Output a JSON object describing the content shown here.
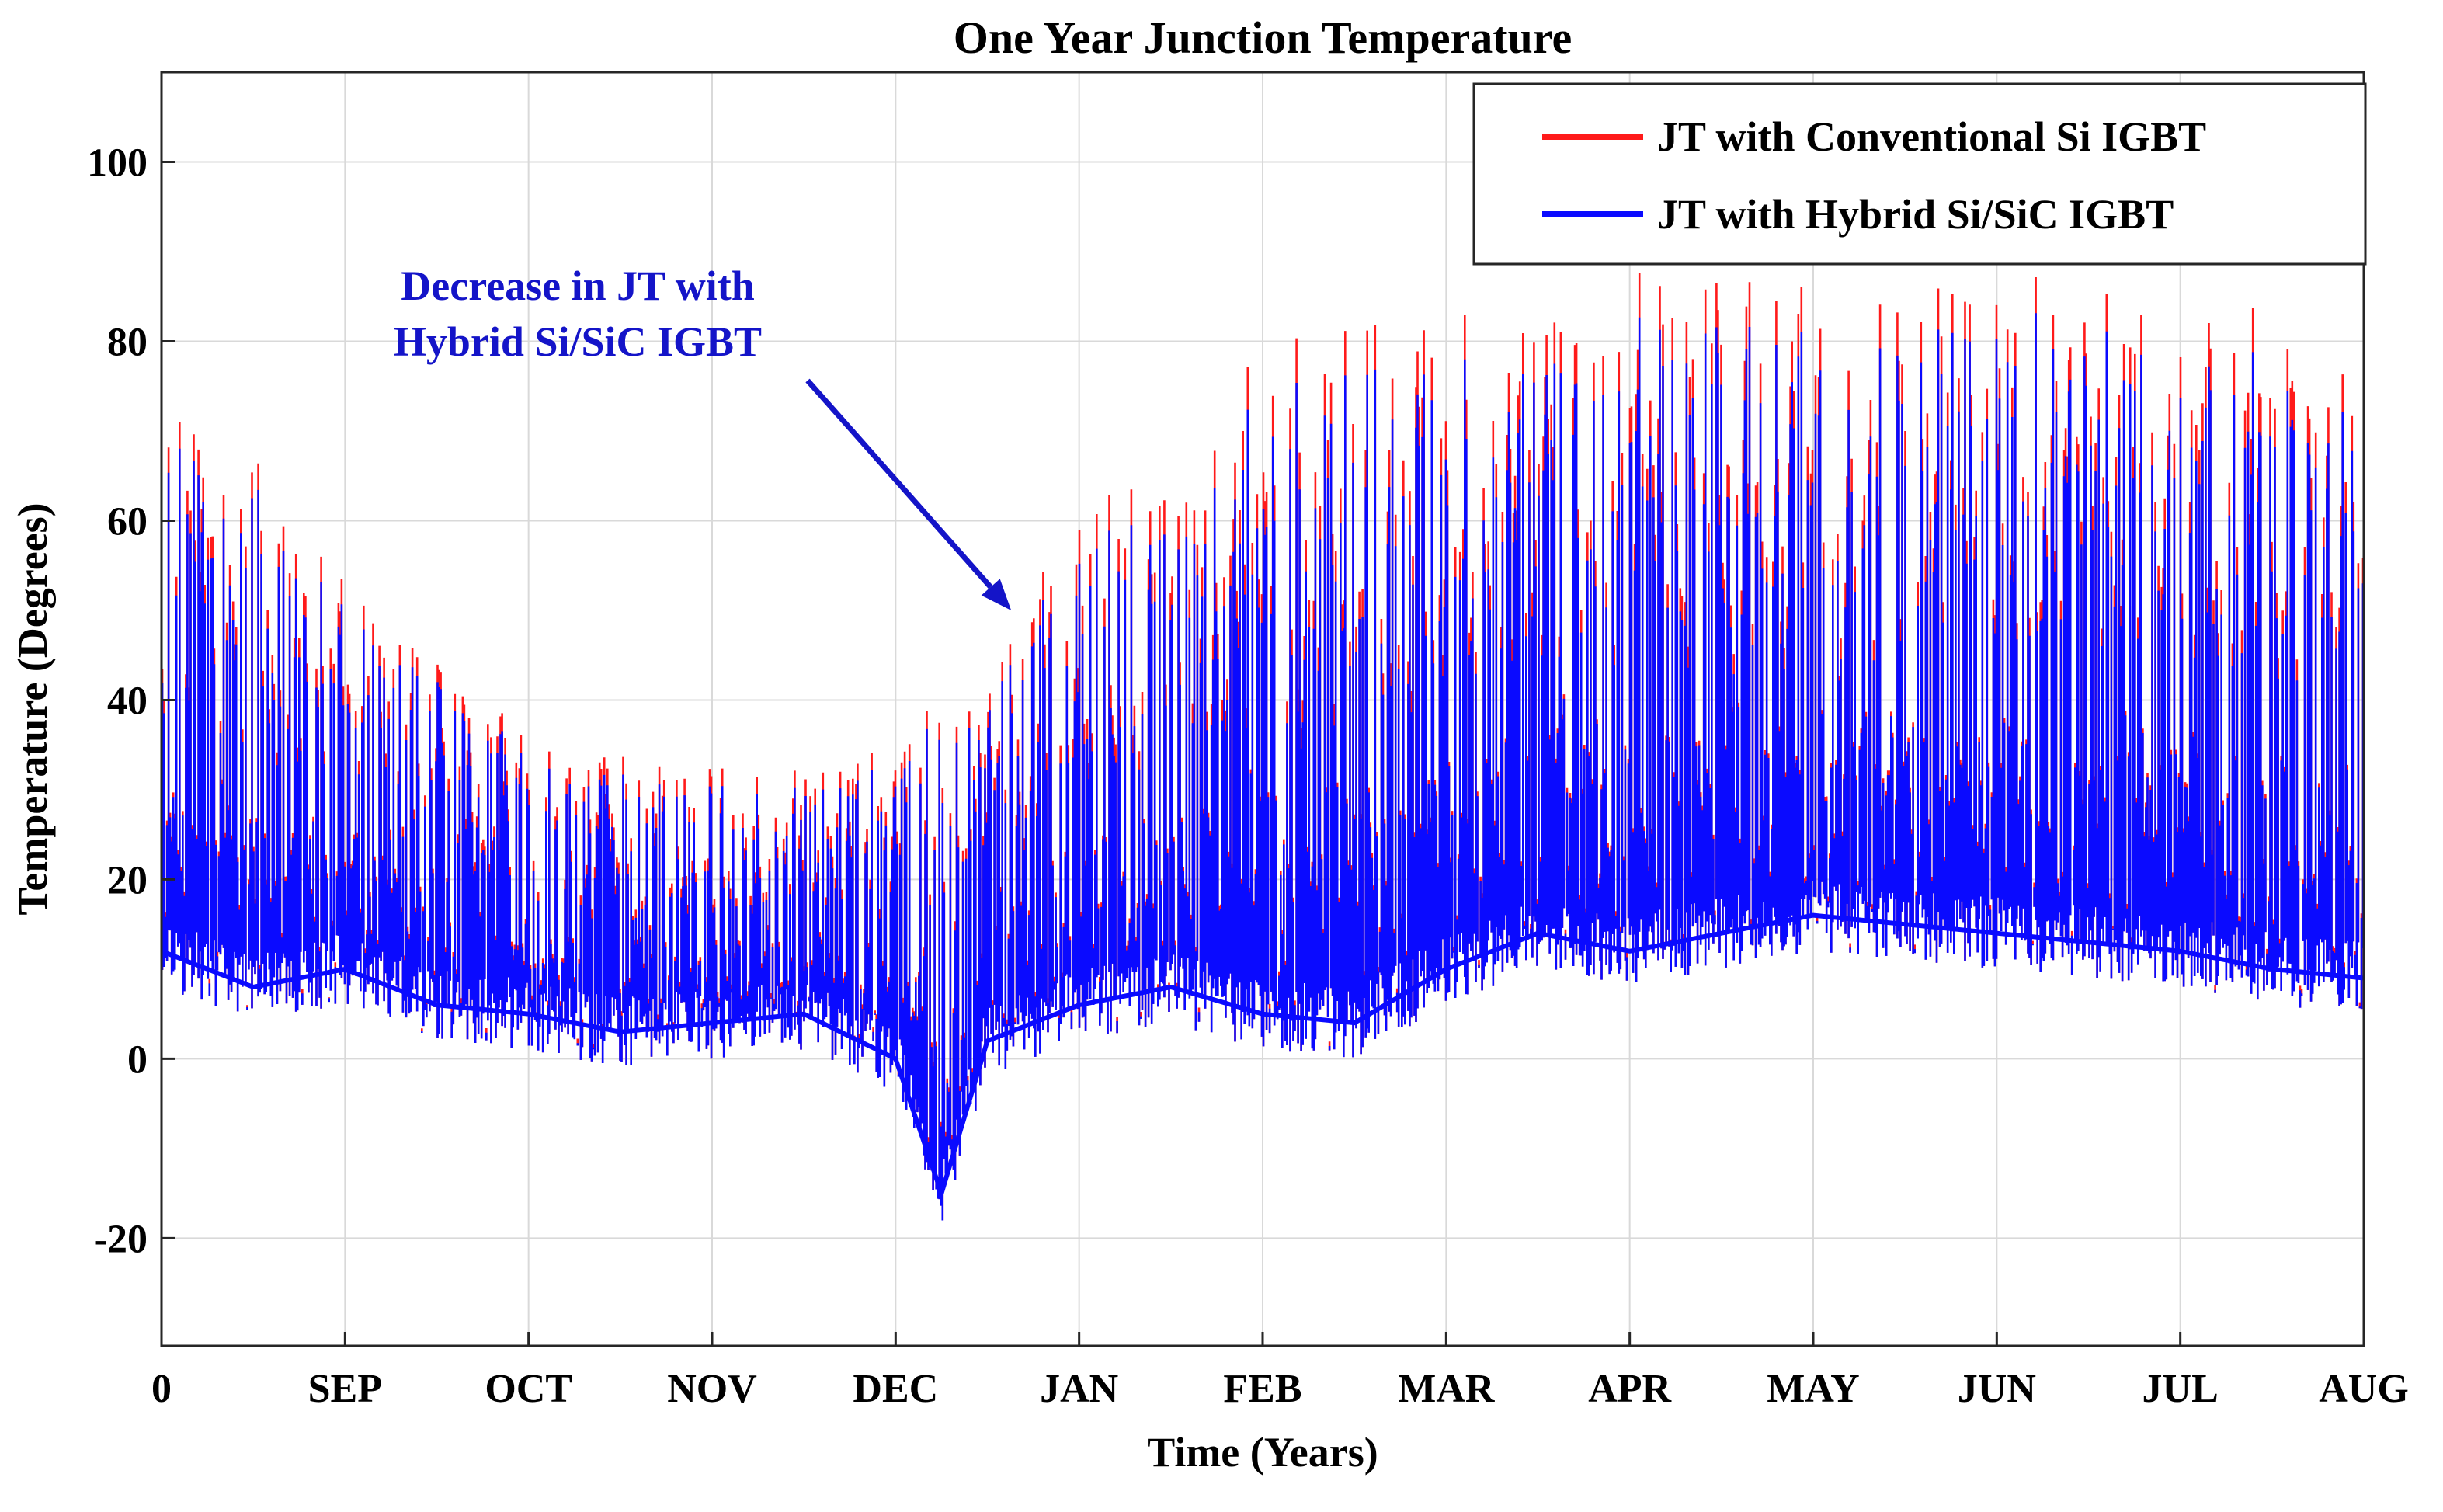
{
  "chart_data": {
    "type": "line",
    "title": "One Year Junction Temperature",
    "xlabel": "Time (Years)",
    "ylabel": "Temperature (Degrees)",
    "xlim": [
      0,
      12
    ],
    "ylim": [
      -32,
      110
    ],
    "yticks": [
      -20,
      0,
      20,
      40,
      60,
      80,
      100
    ],
    "x_tick_positions": [
      0,
      1,
      2,
      3,
      4,
      5,
      6,
      7,
      8,
      9,
      10,
      11,
      12
    ],
    "x_tick_labels": [
      "0",
      "SEP",
      "OCT",
      "NOV",
      "DEC",
      "JAN",
      "FEB",
      "MAR",
      "APR",
      "MAY",
      "JUN",
      "JUL",
      "AUG"
    ],
    "grid": true,
    "legend_position": "top-right",
    "series": [
      {
        "name": "JT with Conventional Si IGBT",
        "color": "#ff1a1a",
        "peak_envelope_x": [
          0,
          0.5,
          1,
          1.5,
          2,
          2.5,
          3,
          3.5,
          4,
          4.5,
          5,
          5.5,
          6,
          6.5,
          7,
          7.5,
          8,
          8.5,
          9,
          9.5,
          10,
          10.5,
          11,
          11.5,
          12
        ],
        "peak_envelope_y": [
          72,
          68,
          55,
          45,
          36,
          34,
          33,
          33,
          36,
          45,
          62,
          65,
          80,
          82,
          82,
          88,
          88,
          87,
          86,
          86,
          88,
          86,
          85,
          84,
          74
        ]
      },
      {
        "name": "JT with Hybrid Si/SiC IGBT",
        "color": "#0a0aff",
        "peak_envelope_x": [
          0,
          0.5,
          1,
          1.5,
          2,
          2.5,
          3,
          3.5,
          4,
          4.5,
          5,
          5.5,
          6,
          6.5,
          7,
          7.5,
          8,
          8.5,
          9,
          9.5,
          10,
          10.5,
          11,
          11.5,
          12
        ],
        "peak_envelope_y": [
          69,
          65,
          52,
          43,
          34,
          32,
          31,
          31,
          34,
          43,
          58,
          61,
          75,
          77,
          77,
          83,
          83,
          82,
          81,
          81,
          84,
          82,
          80,
          79,
          70
        ],
        "base_envelope_x": [
          0,
          0.5,
          1,
          1.5,
          2,
          2.5,
          3,
          3.5,
          4,
          4.25,
          4.5,
          5,
          5.5,
          6,
          6.5,
          7,
          7.5,
          8,
          8.5,
          9,
          9.5,
          10,
          10.5,
          11,
          11.5,
          12
        ],
        "base_envelope_y": [
          12,
          8,
          10,
          6,
          5,
          3,
          4,
          5,
          0,
          -15,
          2,
          6,
          8,
          5,
          4,
          10,
          14,
          12,
          14,
          16,
          15,
          14,
          13,
          12,
          10,
          9
        ]
      }
    ],
    "annotations": [
      {
        "text_lines": [
          "Decrease in JT with",
          "Hybrid Si/SiC IGBT"
        ],
        "color": "#1414c8",
        "arrow_to_x": 4.63,
        "arrow_to_y": 50
      }
    ]
  }
}
